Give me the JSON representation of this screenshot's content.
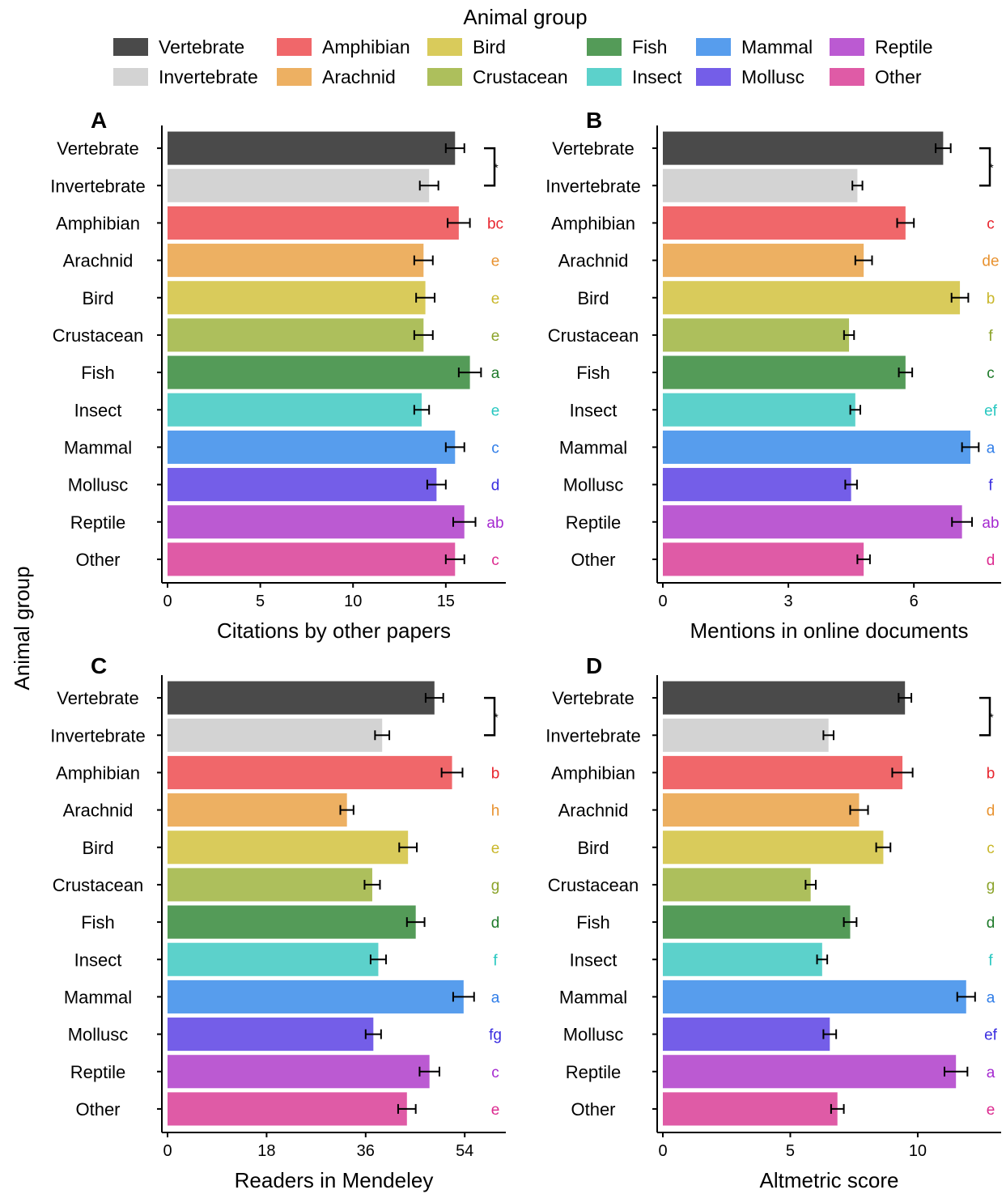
{
  "legend": {
    "title": "Animal group",
    "items": [
      {
        "label": "Vertebrate",
        "color": "#4a4a4a"
      },
      {
        "label": "Invertebrate",
        "color": "#d3d3d3"
      },
      {
        "label": "Amphibian",
        "color": "#f0676a"
      },
      {
        "label": "Arachnid",
        "color": "#edb062"
      },
      {
        "label": "Bird",
        "color": "#d9cb5b"
      },
      {
        "label": "Crustacean",
        "color": "#adbf5c"
      },
      {
        "label": "Fish",
        "color": "#549b58"
      },
      {
        "label": "Insect",
        "color": "#5cd1cb"
      },
      {
        "label": "Mammal",
        "color": "#579ded"
      },
      {
        "label": "Mollusc",
        "color": "#745ee8"
      },
      {
        "label": "Reptile",
        "color": "#bb5ad2"
      },
      {
        "label": "Other",
        "color": "#df5ba6"
      }
    ]
  },
  "y_axis_title": "Animal group",
  "significance_mark": "*",
  "letter_colors": {
    "Amphibian": "#e8262f",
    "Arachnid": "#e8922f",
    "Bird": "#c9b72a",
    "Crustacean": "#8ba32a",
    "Fish": "#1e7a2a",
    "Insect": "#27c7c0",
    "Mammal": "#2f7de8",
    "Mollusc": "#3a2de0",
    "Reptile": "#a52ad0",
    "Other": "#dc2a8f"
  },
  "chart_data": [
    {
      "panel": "A",
      "type": "bar",
      "orientation": "horizontal",
      "xlabel": "Citations by other papers",
      "xlim": [
        0,
        17.8
      ],
      "xticks": [
        0,
        5,
        10,
        15
      ],
      "categories": [
        "Vertebrate",
        "Invertebrate",
        "Amphibian",
        "Arachnid",
        "Bird",
        "Crustacean",
        "Fish",
        "Insect",
        "Mammal",
        "Mollusc",
        "Reptile",
        "Other"
      ],
      "values": [
        15.5,
        14.1,
        15.7,
        13.8,
        13.9,
        13.8,
        16.3,
        13.7,
        15.5,
        14.5,
        16.0,
        15.5
      ],
      "errors": [
        0.5,
        0.5,
        0.6,
        0.5,
        0.5,
        0.5,
        0.6,
        0.4,
        0.5,
        0.5,
        0.6,
        0.5
      ],
      "letters": [
        "",
        "",
        "bc",
        "e",
        "e",
        "e",
        "a",
        "e",
        "c",
        "d",
        "ab",
        "c"
      ]
    },
    {
      "panel": "B",
      "type": "bar",
      "orientation": "horizontal",
      "xlabel": "Mentions in online documents",
      "xlim": [
        0,
        7.95
      ],
      "xticks": [
        0,
        3,
        6
      ],
      "categories": [
        "Vertebrate",
        "Invertebrate",
        "Amphibian",
        "Arachnid",
        "Bird",
        "Crustacean",
        "Fish",
        "Insect",
        "Mammal",
        "Mollusc",
        "Reptile",
        "Other"
      ],
      "values": [
        6.7,
        4.65,
        5.8,
        4.8,
        7.1,
        4.45,
        5.8,
        4.6,
        7.35,
        4.5,
        7.15,
        4.8
      ],
      "errors": [
        0.18,
        0.12,
        0.2,
        0.2,
        0.2,
        0.12,
        0.16,
        0.12,
        0.2,
        0.14,
        0.24,
        0.15
      ],
      "letters": [
        "",
        "",
        "c",
        "de",
        "b",
        "f",
        "c",
        "ef",
        "a",
        "f",
        "ab",
        "d"
      ]
    },
    {
      "panel": "C",
      "type": "bar",
      "orientation": "horizontal",
      "xlabel": "Readers in Mendeley",
      "xlim": [
        0,
        60
      ],
      "xticks": [
        0,
        18,
        36,
        54
      ],
      "categories": [
        "Vertebrate",
        "Invertebrate",
        "Amphibian",
        "Arachnid",
        "Bird",
        "Crustacean",
        "Fish",
        "Insect",
        "Mammal",
        "Mollusc",
        "Reptile",
        "Other"
      ],
      "values": [
        48.5,
        39.0,
        51.7,
        32.6,
        43.7,
        37.2,
        45.1,
        38.3,
        53.8,
        37.4,
        47.6,
        43.5
      ],
      "errors": [
        1.6,
        1.3,
        1.9,
        1.2,
        1.6,
        1.4,
        1.6,
        1.4,
        1.9,
        1.4,
        1.8,
        1.6
      ],
      "letters": [
        "",
        "",
        "b",
        "h",
        "e",
        "g",
        "d",
        "f",
        "a",
        "fg",
        "c",
        "e"
      ]
    },
    {
      "panel": "D",
      "type": "bar",
      "orientation": "horizontal",
      "xlabel": "Altmetric score",
      "xlim": [
        0,
        13.05
      ],
      "xticks": [
        0,
        5,
        10
      ],
      "categories": [
        "Vertebrate",
        "Invertebrate",
        "Amphibian",
        "Arachnid",
        "Bird",
        "Crustacean",
        "Fish",
        "Insect",
        "Mammal",
        "Mollusc",
        "Reptile",
        "Other"
      ],
      "values": [
        9.5,
        6.5,
        9.4,
        7.7,
        8.65,
        5.8,
        7.35,
        6.25,
        11.9,
        6.55,
        11.5,
        6.85
      ],
      "errors": [
        0.25,
        0.2,
        0.4,
        0.35,
        0.28,
        0.2,
        0.25,
        0.2,
        0.35,
        0.25,
        0.45,
        0.25
      ],
      "letters": [
        "",
        "",
        "b",
        "d",
        "c",
        "g",
        "d",
        "f",
        "a",
        "ef",
        "a",
        "e"
      ]
    }
  ]
}
